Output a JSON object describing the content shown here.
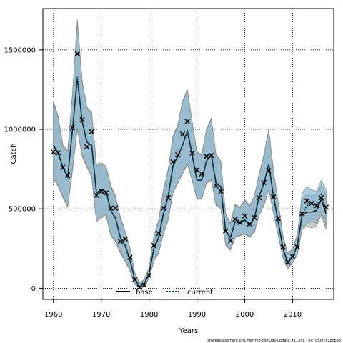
{
  "chart_data": {
    "type": "line",
    "title": "",
    "xlabel": "Years",
    "ylabel": "Catch",
    "xlim": [
      1957.8,
      2018.6
    ],
    "ylim": [
      -70000,
      1760000
    ],
    "x_ticks": [
      1960,
      1970,
      1980,
      1990,
      2000,
      2010
    ],
    "x_tick_labels": [
      "1960",
      "1970",
      "1980",
      "1990",
      "2000",
      "2010"
    ],
    "y_ticks": [
      0,
      500000,
      1000000,
      1500000
    ],
    "y_tick_labels": [
      "0",
      "500000",
      "1000000",
      "1500000"
    ],
    "grid": true,
    "legend": {
      "placement": "bottom-center",
      "entries": [
        "base",
        "current"
      ]
    },
    "footnote": "stockassessment.org, Herring-corrObs-update, r11358 , git: df0b7c1bcb83",
    "observed_catch": {
      "marker": "x",
      "x": [
        1960,
        1961,
        1962,
        1963,
        1964,
        1965,
        1966,
        1967,
        1968,
        1969,
        1970,
        1971,
        1972,
        1973,
        1974,
        1975,
        1976,
        1977,
        1978,
        1979,
        1980,
        1981,
        1982,
        1983,
        1984,
        1985,
        1986,
        1987,
        1988,
        1989,
        1990,
        1991,
        1992,
        1993,
        1994,
        1995,
        1996,
        1997,
        1998,
        1999,
        2000,
        2001,
        2002,
        2003,
        2004,
        2005,
        2006,
        2007,
        2008,
        2009,
        2010,
        2011,
        2012,
        2013,
        2014,
        2015,
        2016,
        2017
      ],
      "y": [
        857000,
        852000,
        760000,
        710000,
        1010000,
        1475000,
        1060000,
        890000,
        985000,
        585000,
        610000,
        600000,
        505000,
        505000,
        295000,
        310000,
        195000,
        55000,
        5000,
        20000,
        80000,
        270000,
        345000,
        505000,
        570000,
        795000,
        840000,
        970000,
        1050000,
        850000,
        745000,
        720000,
        830000,
        835000,
        645000,
        610000,
        360000,
        300000,
        435000,
        415000,
        455000,
        405000,
        445000,
        570000,
        665000,
        740000,
        575000,
        440000,
        260000,
        165000,
        200000,
        260000,
        470000,
        550000,
        535000,
        520000,
        570000,
        510000
      ]
    },
    "series": [
      {
        "name": "base",
        "color": "#000000",
        "line_style": "solid",
        "band_color": "#a9a9a9",
        "x": [
          1960,
          1961,
          1962,
          1963,
          1964,
          1965,
          1966,
          1967,
          1968,
          1969,
          1970,
          1971,
          1972,
          1973,
          1974,
          1975,
          1976,
          1977,
          1978,
          1979,
          1980,
          1981,
          1982,
          1983,
          1984,
          1985,
          1986,
          1987,
          1988,
          1989,
          1990,
          1991,
          1992,
          1993,
          1994,
          1995,
          1996,
          1997,
          1998,
          1999,
          2000,
          2001,
          2002,
          2003,
          2004,
          2005,
          2006,
          2007,
          2008,
          2009,
          2010,
          2011,
          2012,
          2013,
          2014,
          2015,
          2016,
          2017
        ],
        "y": [
          900000,
          850000,
          760000,
          700000,
          1000000,
          1320000,
          1050000,
          920000,
          900000,
          600000,
          620000,
          610000,
          490000,
          440000,
          320000,
          270000,
          180000,
          60000,
          10000,
          30000,
          90000,
          250000,
          320000,
          470000,
          580000,
          770000,
          830000,
          900000,
          990000,
          840000,
          680000,
          680000,
          800000,
          840000,
          660000,
          640000,
          360000,
          320000,
          420000,
          410000,
          430000,
          400000,
          440000,
          580000,
          660000,
          780000,
          580000,
          420000,
          250000,
          160000,
          200000,
          270000,
          460000,
          480000,
          480000,
          490000,
          560000,
          470000
        ],
        "lower": [
          690000,
          640000,
          570000,
          510000,
          740000,
          1000000,
          830000,
          760000,
          700000,
          420000,
          440000,
          460000,
          330000,
          290000,
          220000,
          170000,
          110000,
          25000,
          0,
          10000,
          60000,
          170000,
          220000,
          340000,
          430000,
          600000,
          660000,
          720000,
          780000,
          680000,
          560000,
          560000,
          660000,
          680000,
          520000,
          500000,
          270000,
          240000,
          320000,
          330000,
          340000,
          320000,
          350000,
          460000,
          520000,
          620000,
          470000,
          330000,
          190000,
          120000,
          160000,
          210000,
          370000,
          390000,
          380000,
          390000,
          460000,
          370000
        ],
        "upper": [
          1180000,
          1080000,
          900000,
          870000,
          1230000,
          1690000,
          1310000,
          1140000,
          1110000,
          780000,
          790000,
          770000,
          650000,
          580000,
          450000,
          360000,
          260000,
          100000,
          35000,
          55000,
          130000,
          330000,
          430000,
          620000,
          750000,
          960000,
          1030000,
          1180000,
          1250000,
          1050000,
          860000,
          840000,
          1000000,
          1070000,
          840000,
          800000,
          470000,
          410000,
          530000,
          510000,
          560000,
          520000,
          580000,
          720000,
          840000,
          1000000,
          740000,
          540000,
          330000,
          220000,
          250000,
          340000,
          570000,
          590000,
          580000,
          590000,
          650000,
          590000
        ]
      },
      {
        "name": "current",
        "color": "#0b4a64",
        "line_style": "dotted",
        "band_color": "#7fb7d2",
        "x": [
          1960,
          1961,
          1962,
          1963,
          1964,
          1965,
          1966,
          1967,
          1968,
          1969,
          1970,
          1971,
          1972,
          1973,
          1974,
          1975,
          1976,
          1977,
          1978,
          1979,
          1980,
          1981,
          1982,
          1983,
          1984,
          1985,
          1986,
          1987,
          1988,
          1989,
          1990,
          1991,
          1992,
          1993,
          1994,
          1995,
          1996,
          1997,
          1998,
          1999,
          2000,
          2001,
          2002,
          2003,
          2004,
          2005,
          2006,
          2007,
          2008,
          2009,
          2010,
          2011,
          2012,
          2013,
          2014,
          2015,
          2016,
          2017
        ],
        "y": [
          900000,
          850000,
          760000,
          700000,
          1000000,
          1330000,
          1060000,
          920000,
          900000,
          600000,
          620000,
          610000,
          490000,
          440000,
          320000,
          270000,
          180000,
          60000,
          10000,
          30000,
          90000,
          250000,
          320000,
          470000,
          580000,
          770000,
          830000,
          900000,
          990000,
          840000,
          680000,
          680000,
          800000,
          840000,
          660000,
          640000,
          360000,
          320000,
          420000,
          410000,
          430000,
          400000,
          440000,
          580000,
          660000,
          780000,
          580000,
          420000,
          250000,
          160000,
          200000,
          270000,
          470000,
          520000,
          540000,
          520000,
          590000,
          490000
        ],
        "lower": [
          700000,
          650000,
          580000,
          520000,
          750000,
          1010000,
          840000,
          770000,
          710000,
          430000,
          450000,
          470000,
          340000,
          300000,
          230000,
          180000,
          115000,
          28000,
          0,
          12000,
          62000,
          175000,
          225000,
          345000,
          435000,
          605000,
          665000,
          725000,
          785000,
          685000,
          565000,
          565000,
          665000,
          685000,
          525000,
          505000,
          275000,
          245000,
          325000,
          335000,
          345000,
          325000,
          355000,
          465000,
          525000,
          625000,
          475000,
          335000,
          195000,
          125000,
          165000,
          215000,
          380000,
          410000,
          420000,
          410000,
          480000,
          390000
        ],
        "upper": [
          1170000,
          1070000,
          890000,
          860000,
          1220000,
          1680000,
          1300000,
          1130000,
          1100000,
          770000,
          780000,
          760000,
          640000,
          570000,
          440000,
          355000,
          255000,
          98000,
          33000,
          53000,
          128000,
          325000,
          425000,
          615000,
          745000,
          955000,
          1025000,
          1175000,
          1245000,
          1045000,
          855000,
          835000,
          995000,
          1065000,
          835000,
          795000,
          465000,
          405000,
          525000,
          505000,
          555000,
          515000,
          575000,
          715000,
          835000,
          995000,
          735000,
          535000,
          325000,
          215000,
          245000,
          335000,
          600000,
          640000,
          620000,
          610000,
          680000,
          620000
        ]
      }
    ]
  }
}
